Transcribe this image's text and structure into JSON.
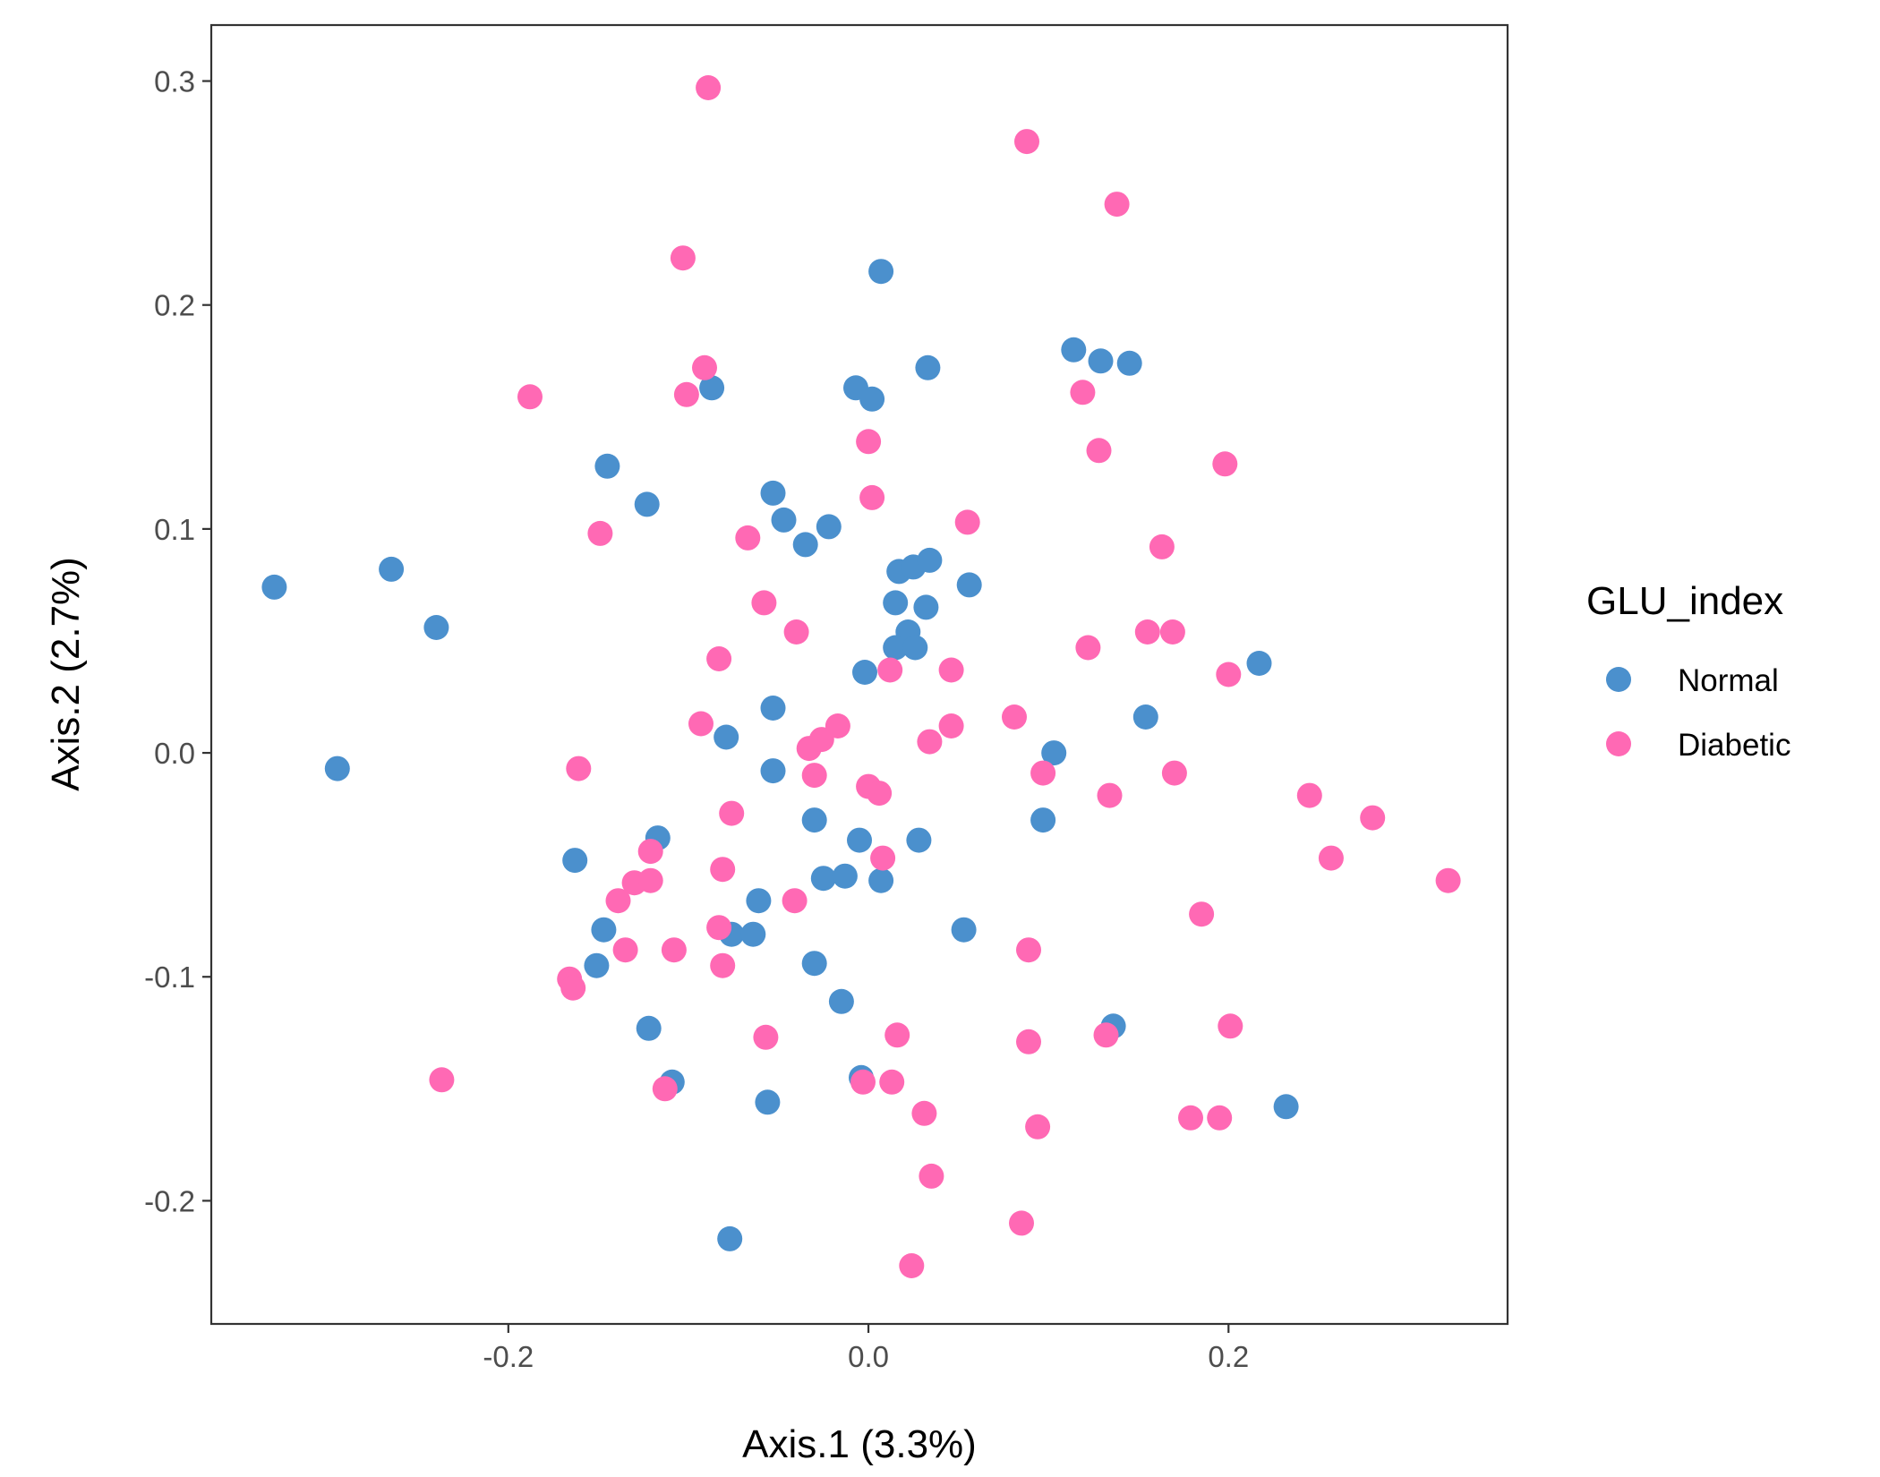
{
  "chart_data": {
    "type": "scatter",
    "xlabel": "Axis.1 (3.3%)",
    "ylabel": "Axis.2 (2.7%)",
    "xlim": [
      -0.365,
      0.355
    ],
    "ylim": [
      -0.255,
      0.325
    ],
    "x_ticks": [
      {
        "value": -0.2,
        "label": "-0.2"
      },
      {
        "value": 0.0,
        "label": "0.0"
      },
      {
        "value": 0.2,
        "label": "0.2"
      }
    ],
    "y_ticks": [
      {
        "value": -0.2,
        "label": "-0.2"
      },
      {
        "value": -0.1,
        "label": "-0.1"
      },
      {
        "value": 0.0,
        "label": "0.0"
      },
      {
        "value": 0.1,
        "label": "0.1"
      },
      {
        "value": 0.2,
        "label": "0.2"
      },
      {
        "value": 0.3,
        "label": "0.3"
      }
    ],
    "grid": false,
    "legend": {
      "title": "GLU_index",
      "position": "right"
    },
    "series": [
      {
        "name": "Normal",
        "color": "#4b90cd",
        "points": [
          [
            -0.33,
            0.074
          ],
          [
            -0.265,
            0.082
          ],
          [
            -0.24,
            0.056
          ],
          [
            -0.295,
            -0.007
          ],
          [
            -0.145,
            0.128
          ],
          [
            -0.123,
            0.111
          ],
          [
            -0.087,
            0.163
          ],
          [
            -0.053,
            0.116
          ],
          [
            -0.047,
            0.104
          ],
          [
            -0.035,
            0.093
          ],
          [
            -0.022,
            0.101
          ],
          [
            0.007,
            0.215
          ],
          [
            -0.007,
            0.163
          ],
          [
            0.002,
            0.158
          ],
          [
            0.033,
            0.172
          ],
          [
            0.114,
            0.18
          ],
          [
            0.129,
            0.175
          ],
          [
            0.145,
            0.174
          ],
          [
            0.017,
            0.081
          ],
          [
            0.025,
            0.083
          ],
          [
            0.034,
            0.086
          ],
          [
            0.056,
            0.075
          ],
          [
            0.015,
            0.067
          ],
          [
            0.032,
            0.065
          ],
          [
            0.022,
            0.054
          ],
          [
            0.015,
            0.047
          ],
          [
            0.026,
            0.047
          ],
          [
            -0.002,
            0.036
          ],
          [
            0.217,
            0.04
          ],
          [
            -0.053,
            0.02
          ],
          [
            0.154,
            0.016
          ],
          [
            -0.079,
            0.007
          ],
          [
            0.103,
            0.0
          ],
          [
            -0.053,
            -0.008
          ],
          [
            -0.03,
            -0.03
          ],
          [
            0.097,
            -0.03
          ],
          [
            -0.163,
            -0.048
          ],
          [
            -0.117,
            -0.038
          ],
          [
            -0.005,
            -0.039
          ],
          [
            0.028,
            -0.039
          ],
          [
            -0.025,
            -0.056
          ],
          [
            -0.013,
            -0.055
          ],
          [
            0.007,
            -0.057
          ],
          [
            -0.061,
            -0.066
          ],
          [
            -0.147,
            -0.079
          ],
          [
            -0.076,
            -0.081
          ],
          [
            -0.064,
            -0.081
          ],
          [
            0.053,
            -0.079
          ],
          [
            -0.151,
            -0.095
          ],
          [
            -0.03,
            -0.094
          ],
          [
            -0.015,
            -0.111
          ],
          [
            -0.122,
            -0.123
          ],
          [
            0.136,
            -0.122
          ],
          [
            -0.109,
            -0.147
          ],
          [
            -0.004,
            -0.145
          ],
          [
            -0.056,
            -0.156
          ],
          [
            0.232,
            -0.158
          ],
          [
            -0.077,
            -0.217
          ]
        ]
      },
      {
        "name": "Diabetic",
        "color": "#ff69b4",
        "points": [
          [
            -0.089,
            0.297
          ],
          [
            0.088,
            0.273
          ],
          [
            0.138,
            0.245
          ],
          [
            -0.103,
            0.221
          ],
          [
            -0.188,
            0.159
          ],
          [
            -0.091,
            0.172
          ],
          [
            -0.101,
            0.16
          ],
          [
            0.119,
            0.161
          ],
          [
            0.0,
            0.139
          ],
          [
            0.128,
            0.135
          ],
          [
            0.198,
            0.129
          ],
          [
            0.002,
            0.114
          ],
          [
            -0.149,
            0.098
          ],
          [
            -0.067,
            0.096
          ],
          [
            0.055,
            0.103
          ],
          [
            0.163,
            0.092
          ],
          [
            -0.058,
            0.067
          ],
          [
            -0.04,
            0.054
          ],
          [
            0.122,
            0.047
          ],
          [
            0.155,
            0.054
          ],
          [
            0.169,
            0.054
          ],
          [
            -0.083,
            0.042
          ],
          [
            0.012,
            0.037
          ],
          [
            0.046,
            0.037
          ],
          [
            0.2,
            0.035
          ],
          [
            -0.093,
            0.013
          ],
          [
            -0.017,
            0.012
          ],
          [
            0.046,
            0.012
          ],
          [
            0.081,
            0.016
          ],
          [
            -0.033,
            0.002
          ],
          [
            -0.026,
            0.006
          ],
          [
            0.034,
            0.005
          ],
          [
            -0.161,
            -0.007
          ],
          [
            -0.03,
            -0.01
          ],
          [
            0.0,
            -0.015
          ],
          [
            0.006,
            -0.018
          ],
          [
            0.097,
            -0.009
          ],
          [
            0.17,
            -0.009
          ],
          [
            -0.076,
            -0.027
          ],
          [
            0.134,
            -0.019
          ],
          [
            0.245,
            -0.019
          ],
          [
            0.28,
            -0.029
          ],
          [
            -0.121,
            -0.044
          ],
          [
            0.008,
            -0.047
          ],
          [
            0.257,
            -0.047
          ],
          [
            0.322,
            -0.057
          ],
          [
            -0.081,
            -0.052
          ],
          [
            -0.13,
            -0.058
          ],
          [
            -0.121,
            -0.057
          ],
          [
            -0.139,
            -0.066
          ],
          [
            -0.041,
            -0.066
          ],
          [
            0.185,
            -0.072
          ],
          [
            -0.083,
            -0.078
          ],
          [
            -0.135,
            -0.088
          ],
          [
            -0.108,
            -0.088
          ],
          [
            0.089,
            -0.088
          ],
          [
            -0.081,
            -0.095
          ],
          [
            -0.166,
            -0.101
          ],
          [
            -0.164,
            -0.105
          ],
          [
            0.132,
            -0.126
          ],
          [
            -0.057,
            -0.127
          ],
          [
            0.016,
            -0.126
          ],
          [
            0.089,
            -0.129
          ],
          [
            0.201,
            -0.122
          ],
          [
            -0.237,
            -0.146
          ],
          [
            -0.113,
            -0.15
          ],
          [
            -0.003,
            -0.147
          ],
          [
            0.013,
            -0.147
          ],
          [
            0.031,
            -0.161
          ],
          [
            0.179,
            -0.163
          ],
          [
            0.195,
            -0.163
          ],
          [
            0.094,
            -0.167
          ],
          [
            0.035,
            -0.189
          ],
          [
            0.085,
            -0.21
          ],
          [
            0.024,
            -0.229
          ]
        ]
      }
    ]
  }
}
